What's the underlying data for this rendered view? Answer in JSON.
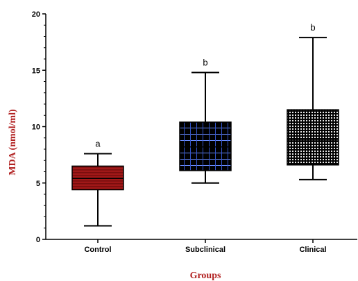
{
  "chart_data": {
    "type": "box",
    "xlabel": "Groups",
    "ylabel": "MDA  (nmol/ml)",
    "ylim": [
      0,
      20
    ],
    "yticks": [
      0,
      5,
      10,
      15,
      20
    ],
    "categories": [
      "Control",
      "Subclinical",
      "Clinical"
    ],
    "boxes": [
      {
        "category": "Control",
        "min": 1.2,
        "q1": 4.4,
        "median": 5.4,
        "q3": 6.5,
        "max": 7.6,
        "annotation": "a",
        "color": "#b22222",
        "pattern": "horizontal-lines"
      },
      {
        "category": "Subclinical",
        "min": 5.0,
        "q1": 6.1,
        "median": 8.2,
        "q3": 10.4,
        "max": 14.8,
        "annotation": "b",
        "color": "#000000",
        "pattern": "blue-grid"
      },
      {
        "category": "Clinical",
        "min": 5.3,
        "q1": 6.6,
        "median": 8.8,
        "q3": 11.5,
        "max": 17.9,
        "annotation": "b",
        "color": "#000000",
        "pattern": "dots"
      }
    ],
    "grid": false,
    "legend": "none"
  }
}
